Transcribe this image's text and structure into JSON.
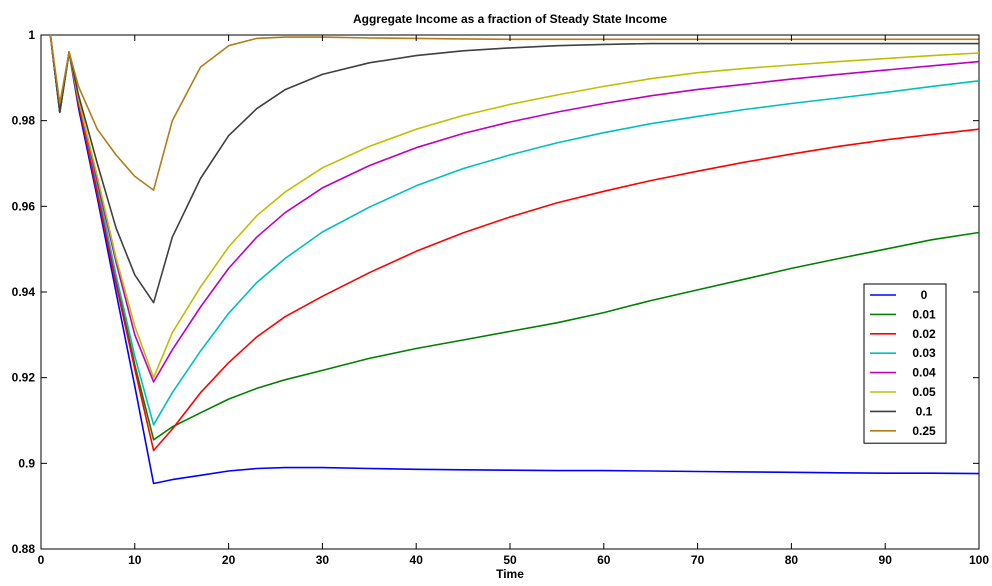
{
  "chart_data": {
    "type": "line",
    "title": "Aggregate Income as a fraction of Steady State Income",
    "xlabel": "Time",
    "ylabel": "",
    "xlim": [
      0,
      100
    ],
    "ylim": [
      0.88,
      1.0
    ],
    "xticks": [
      0,
      10,
      20,
      30,
      40,
      50,
      60,
      70,
      80,
      90,
      100
    ],
    "yticks": [
      0.88,
      0.9,
      0.92,
      0.94,
      0.96,
      0.98,
      1
    ],
    "ytick_labels": [
      "0.88",
      "0.9",
      "0.92",
      "0.94",
      "0.96",
      "0.98",
      "1"
    ],
    "grid": false,
    "legend_position": "right-middle",
    "x": [
      1,
      2,
      3,
      4,
      6,
      8,
      10,
      12,
      14,
      17,
      20,
      23,
      26,
      30,
      35,
      40,
      45,
      50,
      55,
      60,
      65,
      70,
      75,
      80,
      85,
      90,
      95,
      100
    ],
    "series": [
      {
        "name": "0",
        "color": "#0000ff",
        "values": [
          1.0,
          0.982,
          0.996,
          0.983,
          0.962,
          0.94,
          0.918,
          0.8953,
          0.8962,
          0.8972,
          0.8982,
          0.8988,
          0.899,
          0.899,
          0.8988,
          0.8986,
          0.8985,
          0.8984,
          0.8983,
          0.8983,
          0.8982,
          0.8981,
          0.898,
          0.8979,
          0.8978,
          0.8977,
          0.8977,
          0.8976
        ]
      },
      {
        "name": "0.01",
        "color": "#008000",
        "values": [
          1.0,
          0.982,
          0.996,
          0.984,
          0.964,
          0.943,
          0.923,
          0.9055,
          0.9085,
          0.9118,
          0.915,
          0.9175,
          0.9195,
          0.9217,
          0.9245,
          0.9268,
          0.9288,
          0.9308,
          0.9328,
          0.9352,
          0.938,
          0.9405,
          0.943,
          0.9455,
          0.9478,
          0.95,
          0.9522,
          0.9539
        ]
      },
      {
        "name": "0.02",
        "color": "#ff0000",
        "values": [
          1.0,
          0.982,
          0.996,
          0.984,
          0.963,
          0.942,
          0.922,
          0.903,
          0.908,
          0.9165,
          0.9235,
          0.9295,
          0.9342,
          0.939,
          0.9445,
          0.9495,
          0.9538,
          0.9575,
          0.9608,
          0.9635,
          0.966,
          0.9682,
          0.9703,
          0.9722,
          0.974,
          0.9755,
          0.9768,
          0.978
        ]
      },
      {
        "name": "0.03",
        "color": "#00bfbf",
        "values": [
          1.0,
          0.982,
          0.996,
          0.985,
          0.965,
          0.944,
          0.925,
          0.909,
          0.9165,
          0.9262,
          0.935,
          0.9422,
          0.9478,
          0.954,
          0.9598,
          0.9648,
          0.9688,
          0.972,
          0.9748,
          0.9772,
          0.9793,
          0.981,
          0.9826,
          0.984,
          0.9853,
          0.9866,
          0.988,
          0.9893
        ]
      },
      {
        "name": "0.04",
        "color": "#bf00bf",
        "values": [
          1.0,
          0.982,
          0.996,
          0.985,
          0.966,
          0.947,
          0.93,
          0.919,
          0.9265,
          0.9365,
          0.9455,
          0.9528,
          0.9585,
          0.9643,
          0.9695,
          0.9737,
          0.977,
          0.9797,
          0.982,
          0.984,
          0.9858,
          0.9873,
          0.9885,
          0.9897,
          0.9908,
          0.9918,
          0.9928,
          0.9938
        ]
      },
      {
        "name": "0.05",
        "color": "#bfbf00",
        "values": [
          1.0,
          0.982,
          0.996,
          0.985,
          0.967,
          0.948,
          0.932,
          0.92,
          0.9305,
          0.9412,
          0.9505,
          0.9578,
          0.9633,
          0.969,
          0.974,
          0.978,
          0.9812,
          0.9838,
          0.986,
          0.988,
          0.9898,
          0.9912,
          0.9922,
          0.993,
          0.9938,
          0.9945,
          0.9952,
          0.9958
        ]
      },
      {
        "name": "0.1",
        "color": "#404040",
        "values": [
          1.0,
          0.982,
          0.996,
          0.986,
          0.97,
          0.955,
          0.944,
          0.9375,
          0.9528,
          0.9665,
          0.9765,
          0.9828,
          0.9872,
          0.9908,
          0.9935,
          0.9952,
          0.9963,
          0.997,
          0.9975,
          0.9978,
          0.998,
          0.998,
          0.998,
          0.998,
          0.998,
          0.998,
          0.998,
          0.998
        ]
      },
      {
        "name": "0.25",
        "color": "#b07d1a",
        "values": [
          1.0,
          0.984,
          0.996,
          0.988,
          0.978,
          0.972,
          0.967,
          0.9638,
          0.98,
          0.9925,
          0.9975,
          0.9992,
          0.9995,
          0.9995,
          0.9993,
          0.9992,
          0.9991,
          0.999,
          0.999,
          0.999,
          0.999,
          0.999,
          0.999,
          0.999,
          0.999,
          0.999,
          0.999,
          0.999
        ]
      }
    ]
  }
}
